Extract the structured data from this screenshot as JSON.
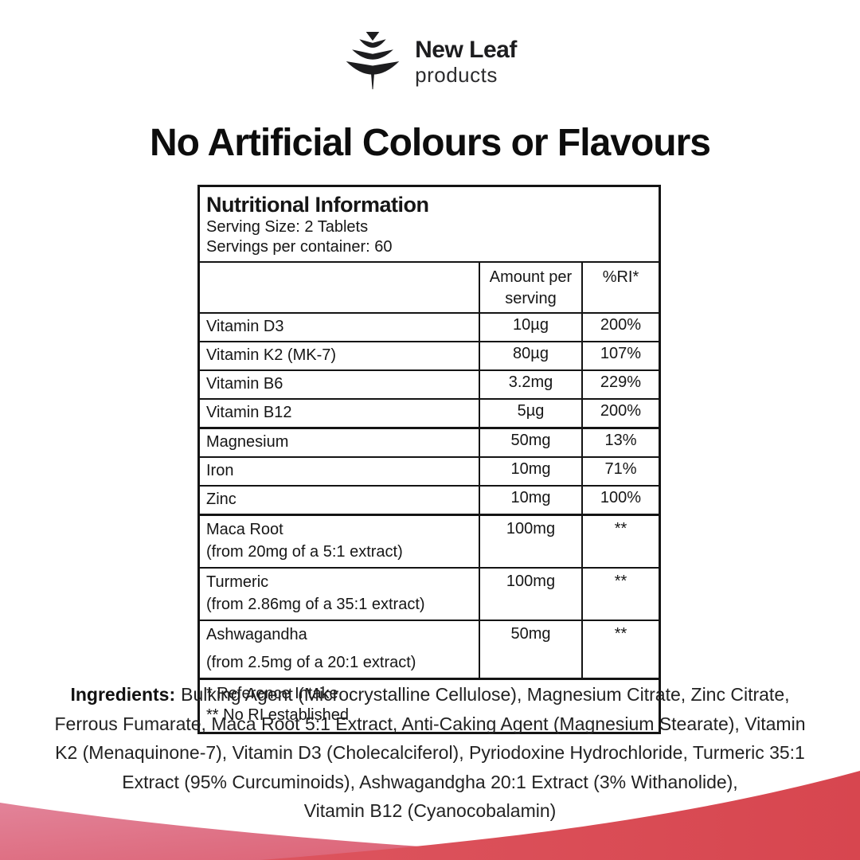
{
  "logo": {
    "brand": "New Leaf",
    "sub": "products"
  },
  "heading": "No Artificial Colours or Flavours",
  "table": {
    "title": "Nutritional Information",
    "serving_size": "Serving Size: 2 Tablets",
    "servings_per_container": "Servings per container: 60",
    "col_amount": "Amount per serving",
    "col_ri": "%RI*",
    "rows": [
      {
        "name": "Vitamin D3",
        "sub": "",
        "amount": "10µg",
        "ri": "200%",
        "section": false
      },
      {
        "name": "Vitamin K2 (MK-7)",
        "sub": "",
        "amount": "80µg",
        "ri": "107%",
        "section": false
      },
      {
        "name": "Vitamin B6",
        "sub": "",
        "amount": "3.2mg",
        "ri": "229%",
        "section": false
      },
      {
        "name": "Vitamin B12",
        "sub": "",
        "amount": "5µg",
        "ri": "200%",
        "section": false
      },
      {
        "name": "Magnesium",
        "sub": "",
        "amount": "50mg",
        "ri": "13%",
        "section": true
      },
      {
        "name": "Iron",
        "sub": "",
        "amount": "10mg",
        "ri": "71%",
        "section": false
      },
      {
        "name": "Zinc",
        "sub": "",
        "amount": "10mg",
        "ri": "100%",
        "section": false
      },
      {
        "name": "Maca Root",
        "sub": "(from 20mg of a 5:1 extract)",
        "amount": "100mg",
        "ri": "**",
        "section": true
      },
      {
        "name": "Turmeric",
        "sub": "(from 2.86mg of a 35:1 extract)",
        "amount": "100mg",
        "ri": "**",
        "section": false
      },
      {
        "name": "Ashwagandha",
        "sub": "(from 2.5mg of a 20:1 extract)",
        "amount": "50mg",
        "ri": "**",
        "section": false
      }
    ],
    "footnotes": [
      "* Reference Intake",
      "** No RI established"
    ]
  },
  "ingredients": {
    "label": "Ingredients:",
    "lines": [
      "Bulking Agent (Microcrystalline Cellulose), Magnesium Citrate, Zinc Citrate,",
      "Ferrous Fumarate, Maca Root 5:1 Extract, Anti-Caking Agent (Magnesium Stearate), Vitamin",
      "K2 (Menaquinone-7), Vitamin D3 (Cholecalciferol), Pyriodoxine Hydrochloride, Turmeric 35:1",
      "Extract (95% Curcuminoids), Ashwagandgha 20:1 Extract (3% Withanolide),",
      "Vitamin B12 (Cyanocobalamin)"
    ]
  },
  "colors": {
    "wave_red": "#d7464f",
    "wave_red_light": "#dd555f",
    "wave_pink": "#e28399",
    "wave_pink_deep": "#db5c6d",
    "logo_black": "#1d1d1f",
    "text_black": "#161616"
  }
}
